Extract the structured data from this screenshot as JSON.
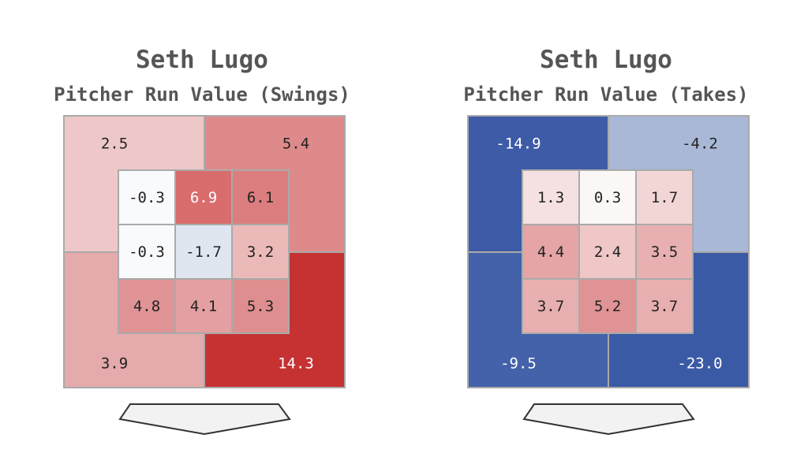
{
  "panels": [
    {
      "title": "Seth Lugo",
      "subtitle": "Pitcher Run Value (Swings)",
      "chart_data": {
        "type": "heatmap",
        "title": "Seth Lugo",
        "subtitle": "Pitcher Run Value (Swings)",
        "outer_zones": {
          "top_left": 2.5,
          "top_right": 5.4,
          "bottom_left": 3.9,
          "bottom_right": 14.3
        },
        "inner_grid": [
          [
            -0.3,
            6.9,
            6.1
          ],
          [
            -0.3,
            -1.7,
            3.2
          ],
          [
            4.8,
            4.1,
            5.3
          ]
        ],
        "labels": {
          "outer": {
            "top_left": "2.5",
            "top_right": "5.4",
            "bottom_left": "3.9",
            "bottom_right": "14.3"
          },
          "inner": [
            [
              "-0.3",
              "6.9",
              "6.1"
            ],
            [
              "-0.3",
              "-1.7",
              "3.2"
            ],
            [
              "4.8",
              "4.1",
              "5.3"
            ]
          ]
        },
        "colors": {
          "outer": {
            "top_left": "#eec8c8",
            "top_right": "#de8a8b",
            "bottom_left": "#e5aaab",
            "bottom_right": "#c63232"
          },
          "inner": [
            [
              "#f9fafc",
              "#d96c6d",
              "#dc7e7f"
            ],
            [
              "#f9fafc",
              "#e0e6f0",
              "#ecb9b9"
            ],
            [
              "#e09395",
              "#e39fa1",
              "#df8e8f"
            ]
          ]
        }
      }
    },
    {
      "title": "Seth Lugo",
      "subtitle": "Pitcher Run Value (Takes)",
      "chart_data": {
        "type": "heatmap",
        "title": "Seth Lugo",
        "subtitle": "Pitcher Run Value (Takes)",
        "outer_zones": {
          "top_left": -14.9,
          "top_right": -4.2,
          "bottom_left": -9.5,
          "bottom_right": -23.0
        },
        "inner_grid": [
          [
            1.3,
            0.3,
            1.7
          ],
          [
            4.4,
            2.4,
            3.5
          ],
          [
            3.7,
            5.2,
            3.7
          ]
        ],
        "labels": {
          "outer": {
            "top_left": "-14.9",
            "top_right": "-4.2",
            "bottom_left": "-9.5",
            "bottom_right": "-23.0"
          },
          "inner": [
            [
              "1.3",
              "0.3",
              "1.7"
            ],
            [
              "4.4",
              "2.4",
              "3.5"
            ],
            [
              "3.7",
              "5.2",
              "3.7"
            ]
          ]
        },
        "colors": {
          "outer": {
            "top_left": "#3d5ba6",
            "top_right": "#a8b8d6",
            "bottom_left": "#4462a9",
            "bottom_right": "#3b5aa5"
          },
          "inner": [
            [
              "#f5e1e1",
              "#fcf7f7",
              "#f2d6d6"
            ],
            [
              "#e5a4a5",
              "#efc7c7",
              "#e8b0b1"
            ],
            [
              "#e8afb0",
              "#e09394",
              "#e8afb0"
            ]
          ]
        }
      }
    }
  ]
}
